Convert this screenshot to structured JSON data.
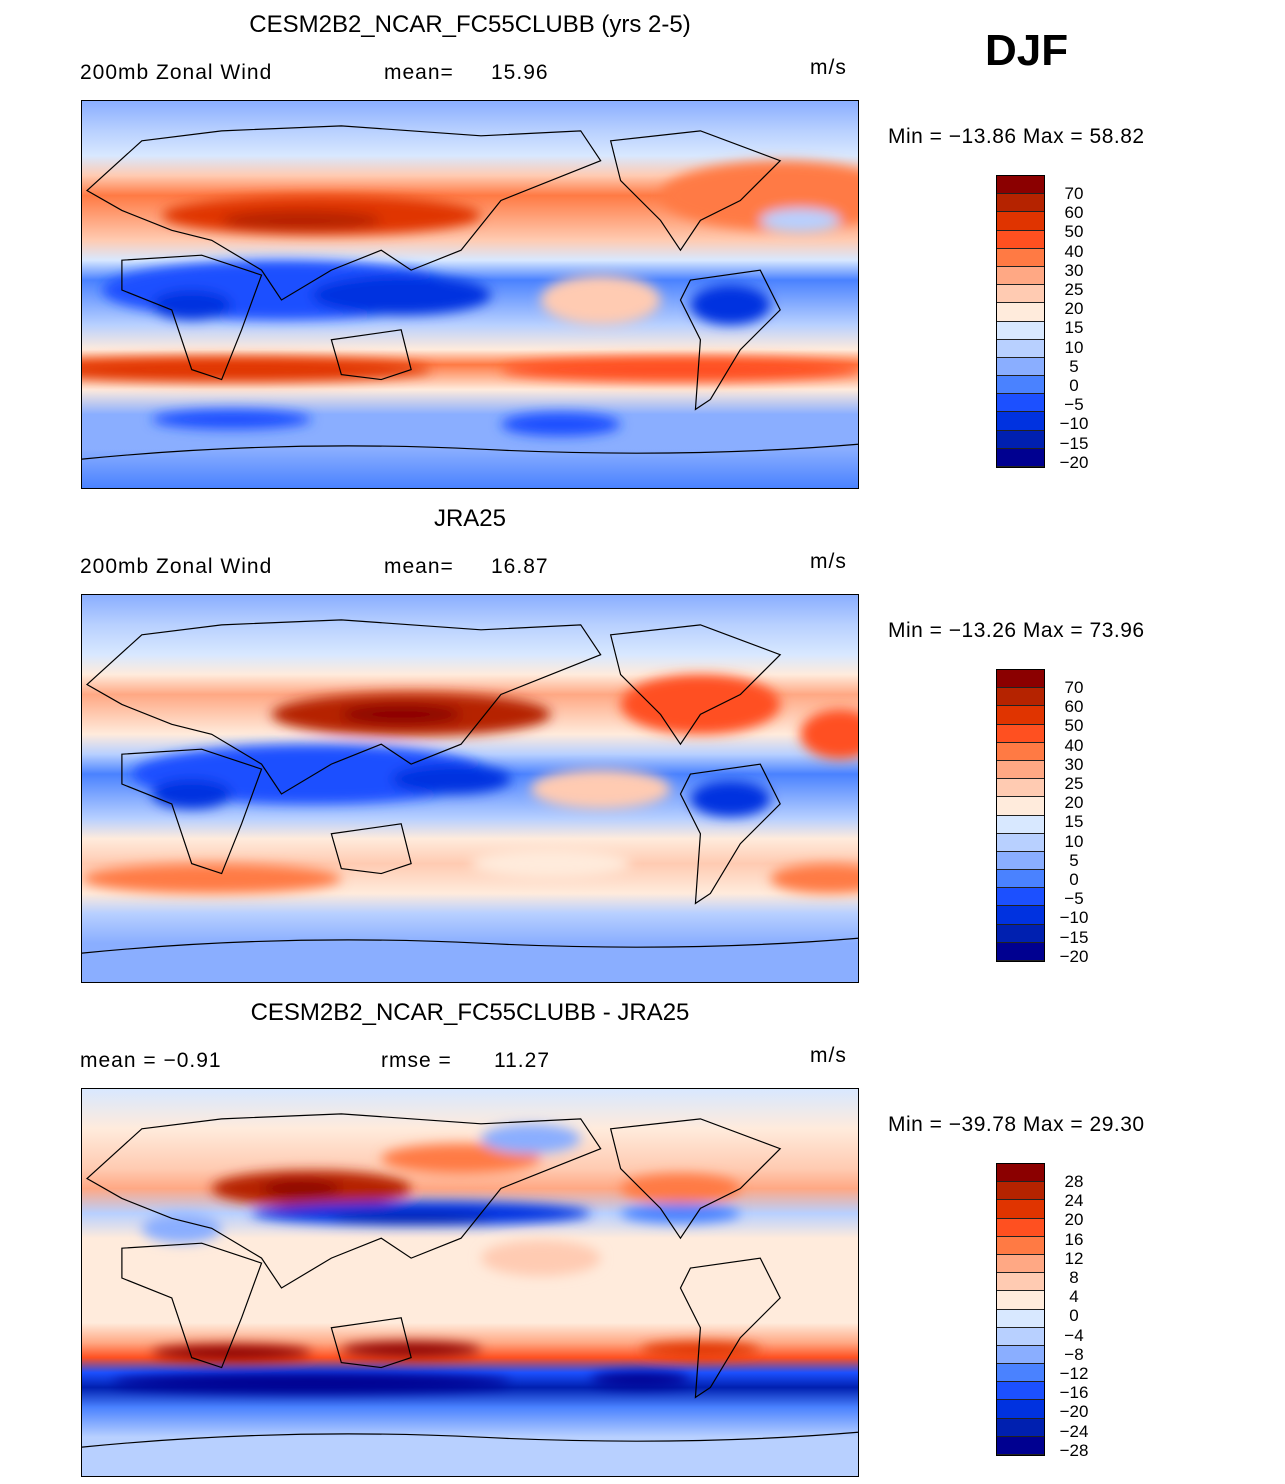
{
  "season": "DJF",
  "units": "m/s",
  "panels": [
    {
      "title": "CESM2B2_NCAR_FC55CLUBB (yrs 2-5)",
      "left_label": "200mb  Zonal Wind",
      "stat_label": "mean=",
      "stat_value": "15.96",
      "min_label": "Min  =  −13.86  Max  =    58.82",
      "levels": [
        "70",
        "60",
        "50",
        "40",
        "30",
        "25",
        "20",
        "15",
        "10",
        "5",
        "0",
        "−5",
        "−10",
        "−15",
        "−20"
      ]
    },
    {
      "title": "JRA25",
      "left_label": "200mb  Zonal Wind",
      "stat_label": "mean=",
      "stat_value": "16.87",
      "min_label": "Min  =  −13.26  Max  =    73.96",
      "levels": [
        "70",
        "60",
        "50",
        "40",
        "30",
        "25",
        "20",
        "15",
        "10",
        "5",
        "0",
        "−5",
        "−10",
        "−15",
        "−20"
      ]
    },
    {
      "title": "CESM2B2_NCAR_FC55CLUBB - JRA25",
      "left_label": "mean  =    −0.91",
      "stat_label": "rmse  =",
      "stat_value": "11.27",
      "min_label": "Min  =  −39.78  Max  =    29.30",
      "levels": [
        "28",
        "24",
        "20",
        "16",
        "12",
        "8",
        "4",
        "0",
        "−4",
        "−8",
        "−12",
        "−16",
        "−20",
        "−24",
        "−28"
      ]
    }
  ],
  "colors": [
    "#8b0000",
    "#b52300",
    "#e03400",
    "#ff5020",
    "#ff7a44",
    "#ffa884",
    "#ffcbb2",
    "#ffebdc",
    "#d8e8ff",
    "#b8d0ff",
    "#8aaeff",
    "#4a82ff",
    "#1c50ff",
    "#0032e0",
    "#0020b0",
    "#000090"
  ]
}
